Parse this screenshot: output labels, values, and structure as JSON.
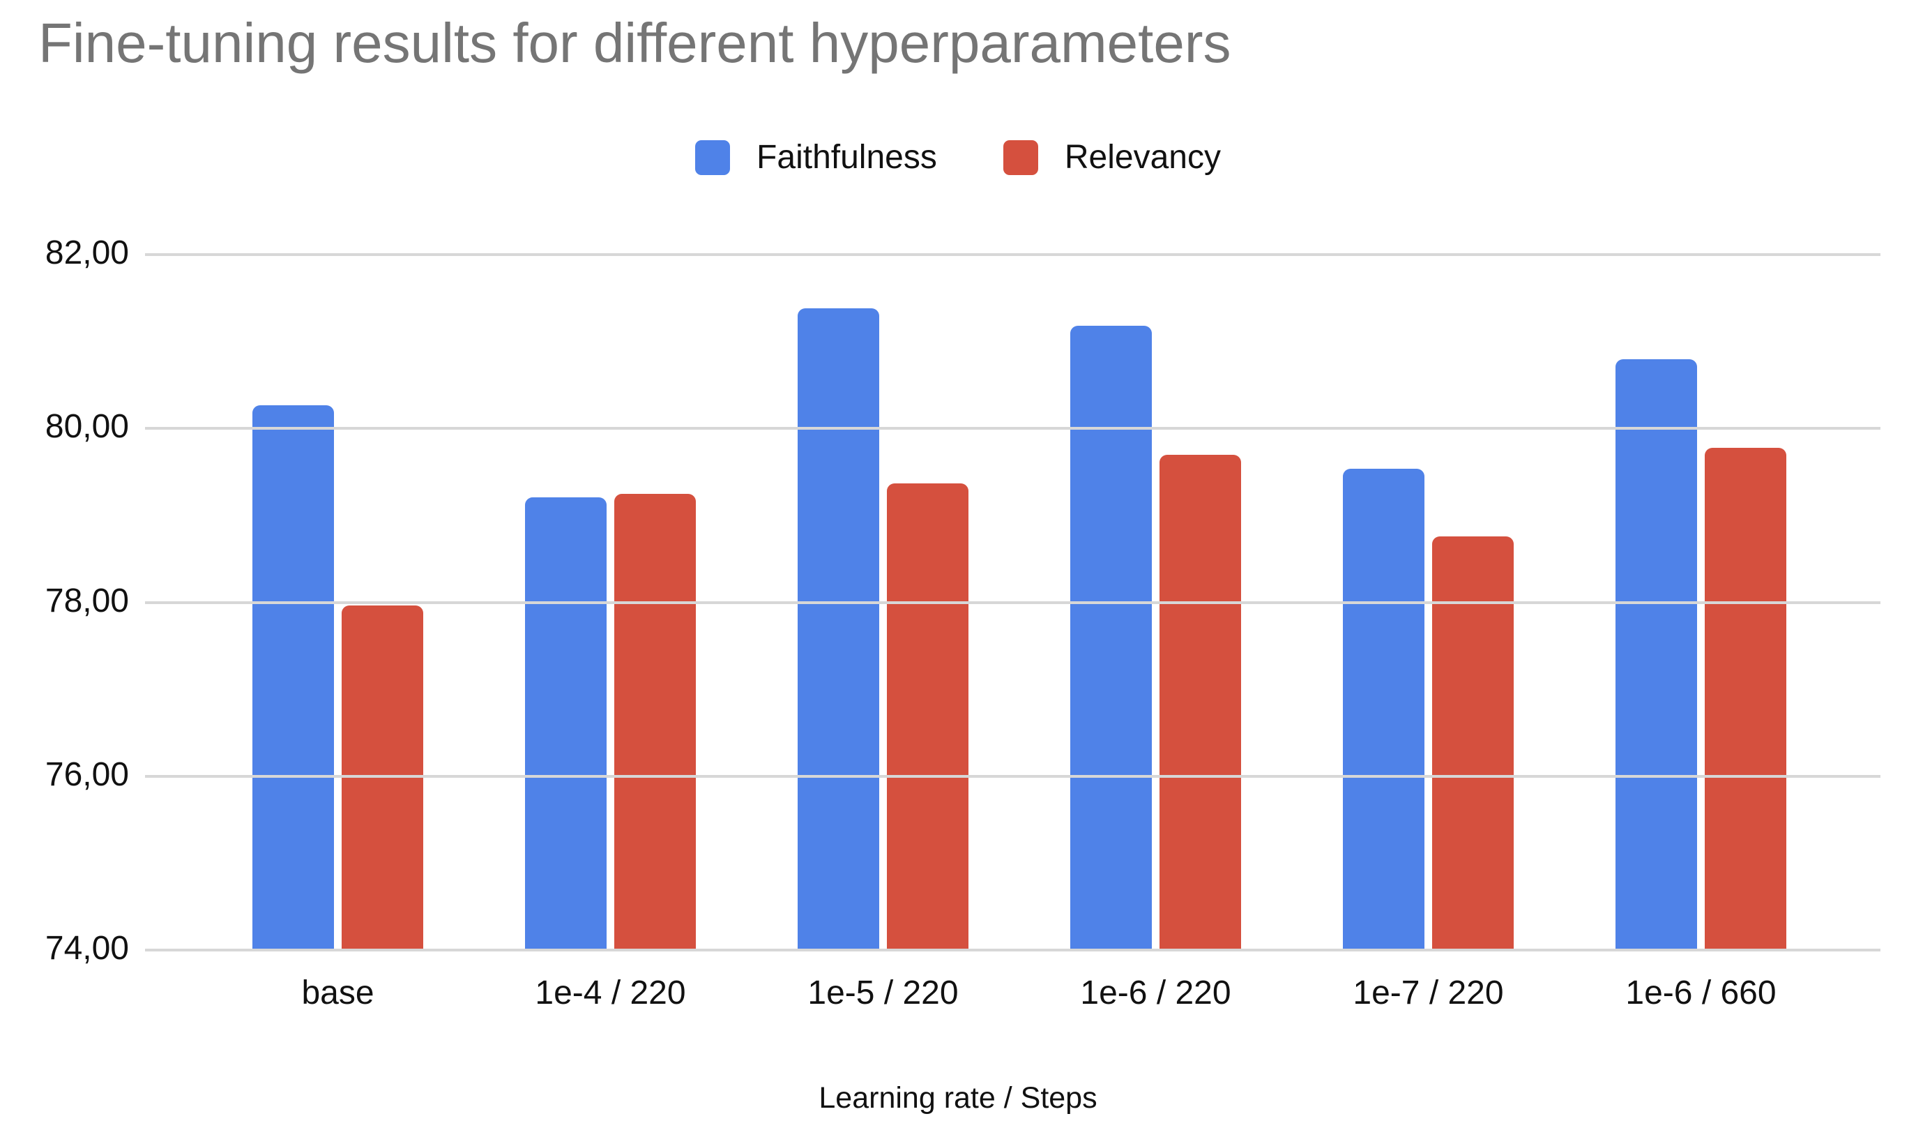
{
  "chart": {
    "title": "Fine-tuning results for different hyperparameters",
    "title_color": "#757575",
    "background_color": "#ffffff",
    "gridline_color": "#d7d7d7",
    "axis_text_color": "#111111",
    "legend": {
      "items": [
        {
          "label": "Faithfulness",
          "color": "#4f82e8"
        },
        {
          "label": "Relevancy",
          "color": "#d5503e"
        }
      ]
    },
    "x_axis_title": "Learning rate / Steps"
  },
  "chart_data": {
    "type": "bar",
    "title": "Fine-tuning results for different hyperparameters",
    "xlabel": "Learning rate / Steps",
    "ylabel": "",
    "categories": [
      "base",
      "1e-4 / 220",
      "1e-5 / 220",
      "1e-6 / 220",
      "1e-7 / 220",
      "1e-6 / 660"
    ],
    "series": [
      {
        "name": "Faithfulness",
        "color": "#4f82e8",
        "values": [
          80.27,
          79.21,
          81.38,
          81.18,
          79.54,
          80.8
        ]
      },
      {
        "name": "Relevancy",
        "color": "#d5503e",
        "values": [
          77.96,
          79.25,
          79.37,
          79.7,
          78.76,
          79.78
        ]
      }
    ],
    "ylim": [
      74,
      82
    ],
    "yticks": [
      82,
      80,
      78,
      76,
      74
    ],
    "ytick_labels": [
      "82,00",
      "80,00",
      "78,00",
      "76,00",
      "74,00"
    ],
    "decimal_separator": ",",
    "grid": true,
    "legend_position": "top",
    "bar_baseline_value": 74
  }
}
